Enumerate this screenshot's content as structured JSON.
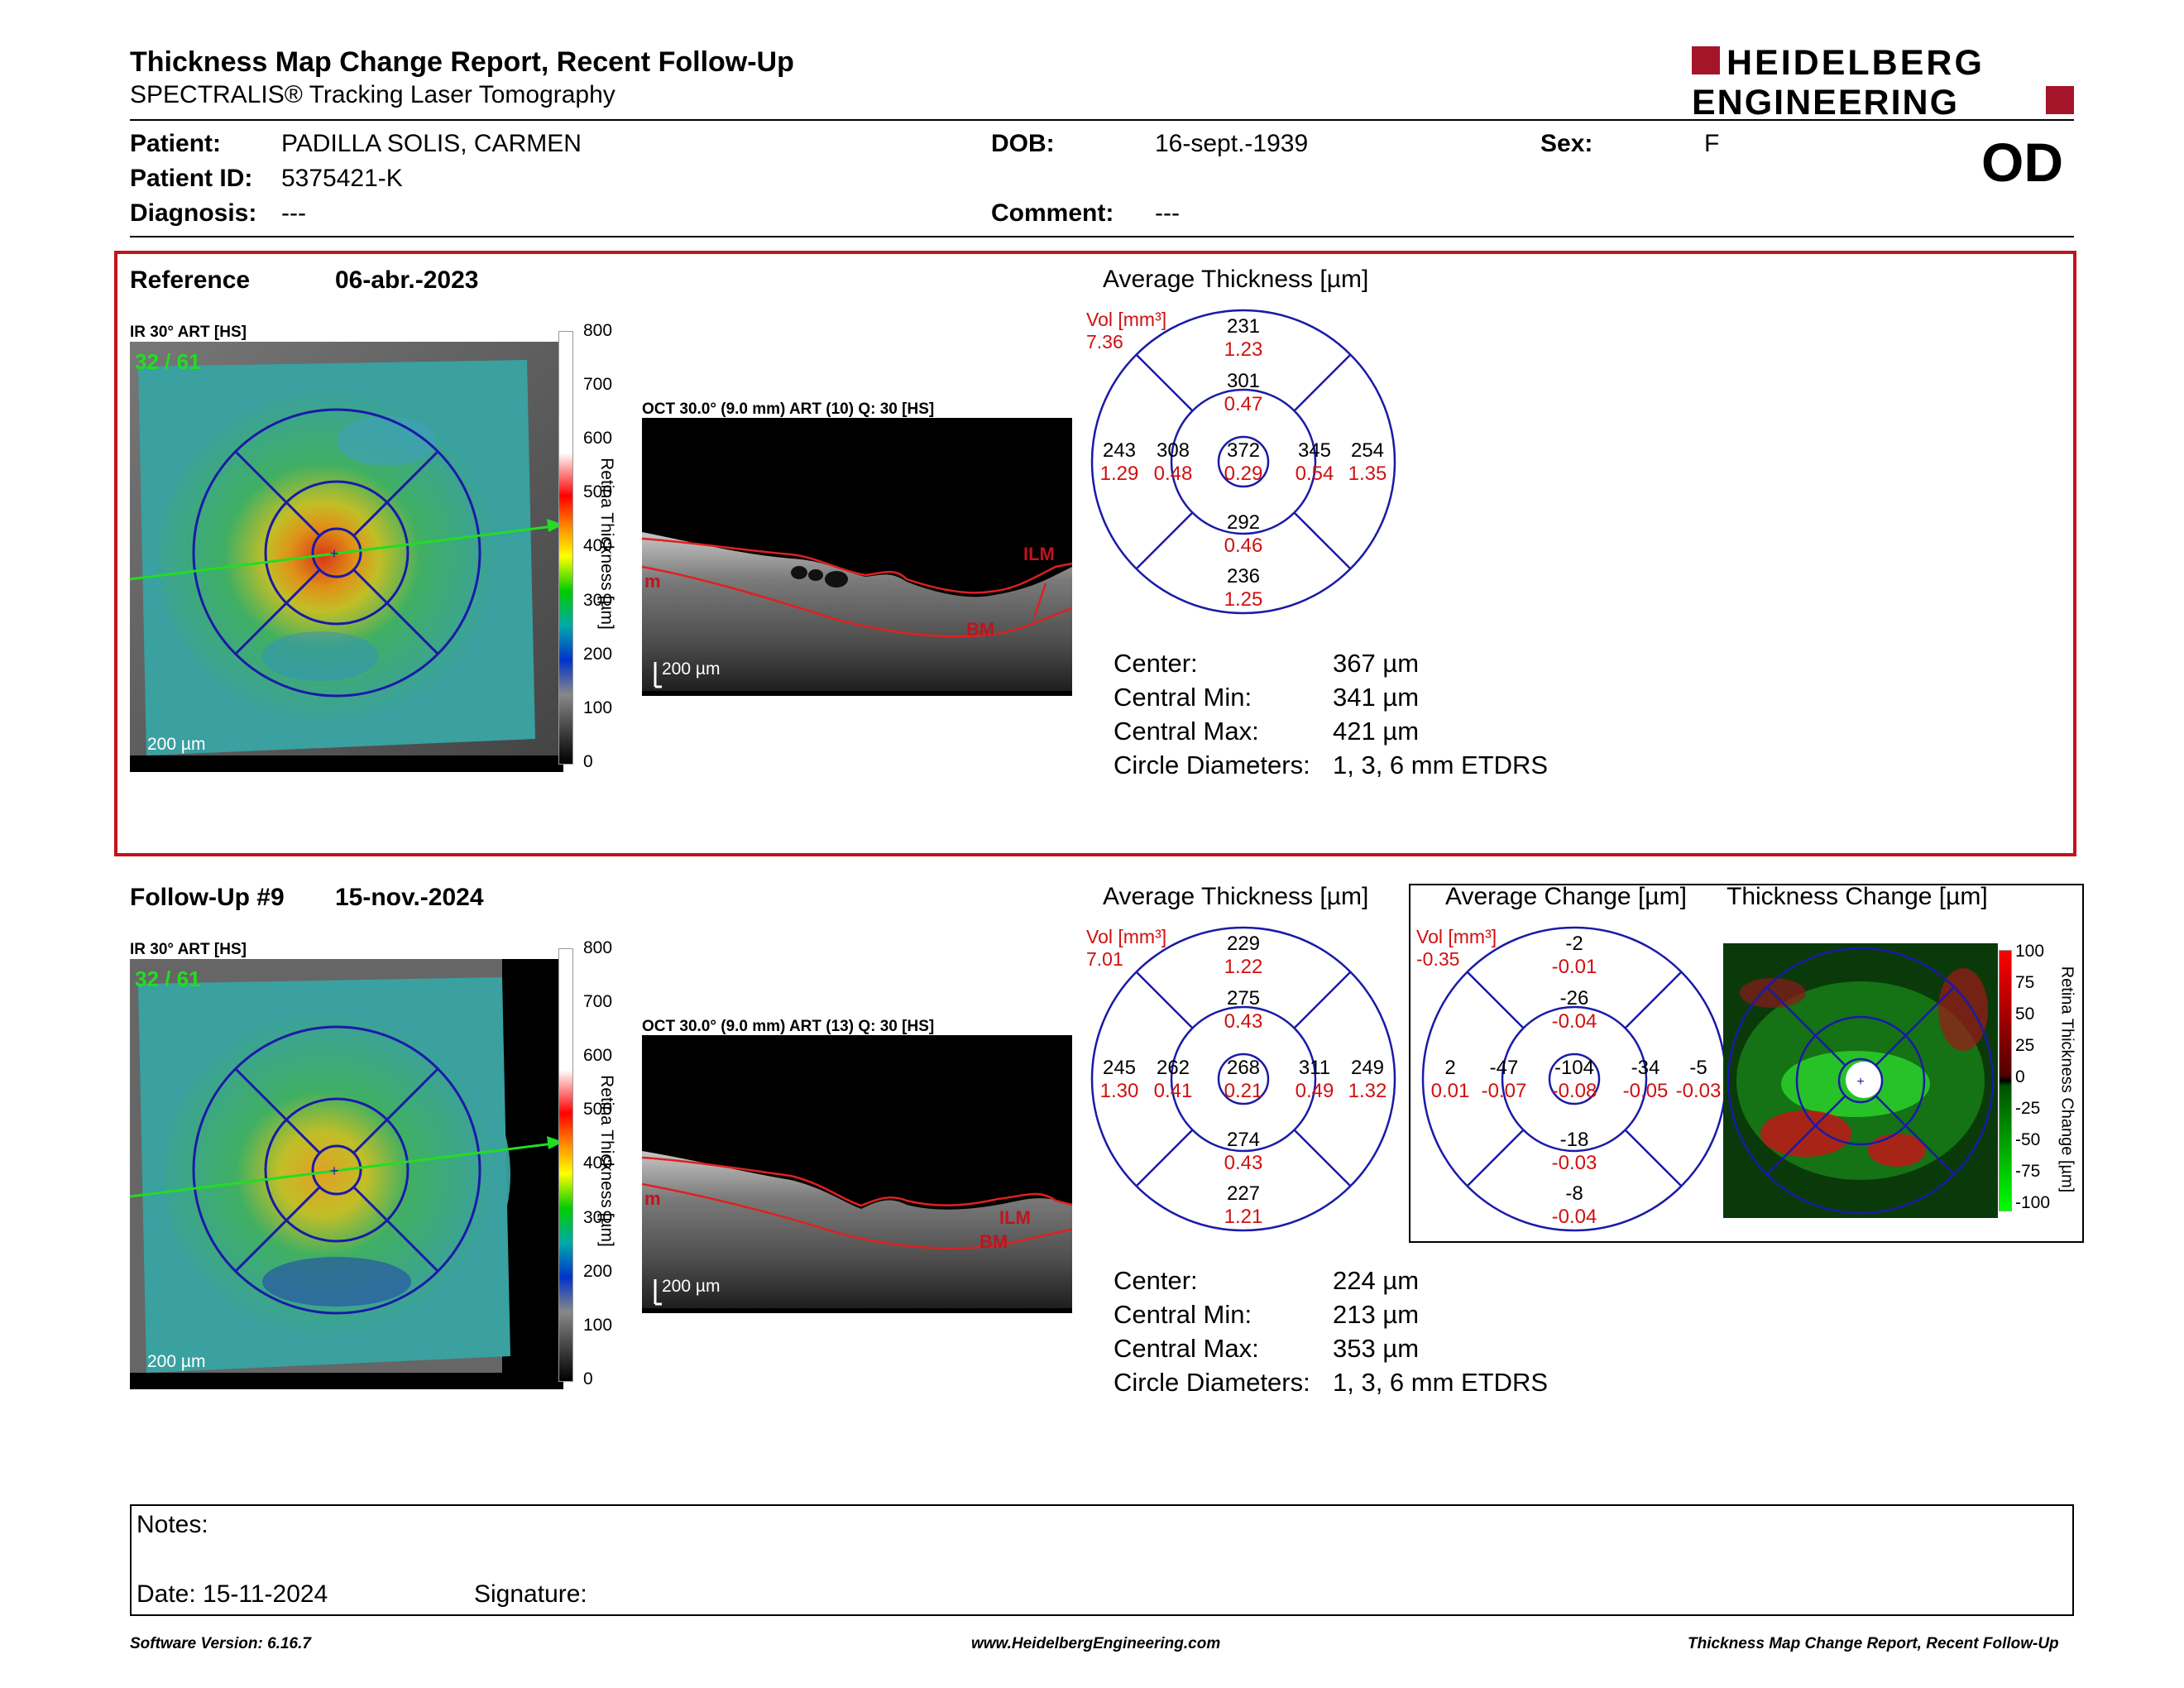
{
  "header": {
    "title": "Thickness Map Change Report, Recent Follow-Up",
    "subtitle": "SPECTRALIS® Tracking Laser Tomography",
    "logo_line1": "HEIDELBERG",
    "logo_line2": "ENGINEERING",
    "eye": "OD"
  },
  "patient": {
    "patient_label": "Patient:",
    "patient_value": "PADILLA SOLIS, CARMEN",
    "id_label": "Patient ID:",
    "id_value": "5375421-K",
    "diagnosis_label": "Diagnosis:",
    "diagnosis_value": "---",
    "dob_label": "DOB:",
    "dob_value": "16-sept.-1939",
    "comment_label": "Comment:",
    "comment_value": "---",
    "sex_label": "Sex:",
    "sex_value": "F"
  },
  "reference": {
    "label": "Reference",
    "date": "06-abr.-2023",
    "ir_label": "IR 30° ART [HS]",
    "fraction": "32 / 61",
    "scale": "200 µm",
    "oct_label": "OCT 30.0° (9.0 mm) ART (10) Q: 30 [HS]",
    "oct_scale": "200 µm",
    "ilm": "ILM",
    "bm": "BM",
    "m": "m",
    "colorbar_ticks": [
      "800",
      "700",
      "600",
      "500",
      "400",
      "300",
      "200",
      "100",
      "0"
    ],
    "colorbar_title": "Retina Thickness [µm]",
    "grid_title": "Average Thickness [µm]",
    "vol_label": "Vol [mm³]",
    "vol_value": "7.36",
    "grid": {
      "sup_outer": [
        "231",
        "1.23"
      ],
      "sup_inner": [
        "301",
        "0.47"
      ],
      "temp_outer": [
        "243",
        "1.29"
      ],
      "temp_inner": [
        "308",
        "0.48"
      ],
      "center": [
        "372",
        "0.29"
      ],
      "nas_inner": [
        "345",
        "0.54"
      ],
      "nas_outer": [
        "254",
        "1.35"
      ],
      "inf_inner": [
        "292",
        "0.46"
      ],
      "inf_outer": [
        "236",
        "1.25"
      ]
    },
    "stats": [
      {
        "label": "Center:",
        "value": "367 µm"
      },
      {
        "label": "Central Min:",
        "value": "341 µm"
      },
      {
        "label": "Central Max:",
        "value": "421 µm"
      },
      {
        "label": "Circle Diameters:",
        "value": "1, 3, 6 mm ETDRS"
      }
    ]
  },
  "followup": {
    "label": "Follow-Up #9",
    "date": "15-nov.-2024",
    "ir_label": "IR 30° ART [HS]",
    "fraction": "32 / 61",
    "scale": "200 µm",
    "oct_label": "OCT 30.0° (9.0 mm) ART (13) Q: 30 [HS]",
    "oct_scale": "200 µm",
    "ilm": "ILM",
    "bm": "BM",
    "m": "m",
    "colorbar_ticks": [
      "800",
      "700",
      "600",
      "500",
      "400",
      "300",
      "200",
      "100",
      "0"
    ],
    "colorbar_title": "Retina Thickness [µm]",
    "grid_title": "Average Thickness [µm]",
    "vol_label": "Vol [mm³]",
    "vol_value": "7.01",
    "grid": {
      "sup_outer": [
        "229",
        "1.22"
      ],
      "sup_inner": [
        "275",
        "0.43"
      ],
      "temp_outer": [
        "245",
        "1.30"
      ],
      "temp_inner": [
        "262",
        "0.41"
      ],
      "center": [
        "268",
        "0.21"
      ],
      "nas_inner": [
        "311",
        "0.49"
      ],
      "nas_outer": [
        "249",
        "1.32"
      ],
      "inf_inner": [
        "274",
        "0.43"
      ],
      "inf_outer": [
        "227",
        "1.21"
      ]
    },
    "stats": [
      {
        "label": "Center:",
        "value": "224 µm"
      },
      {
        "label": "Central Min:",
        "value": "213 µm"
      },
      {
        "label": "Central Max:",
        "value": "353 µm"
      },
      {
        "label": "Circle Diameters:",
        "value": "1, 3, 6 mm ETDRS"
      }
    ],
    "change_title": "Average Change [µm]",
    "change_vol_label": "Vol [mm³]",
    "change_vol_value": "-0.35",
    "change_grid": {
      "sup_outer": [
        "-2",
        "-0.01"
      ],
      "sup_inner": [
        "-26",
        "-0.04"
      ],
      "temp_outer": [
        "2",
        "0.01"
      ],
      "temp_inner": [
        "-47",
        "-0.07"
      ],
      "center": [
        "-104",
        "-0.08"
      ],
      "nas_inner": [
        "-34",
        "-0.05"
      ],
      "nas_outer": [
        "-5",
        "-0.03"
      ],
      "inf_inner": [
        "-18",
        "-0.03"
      ],
      "inf_outer": [
        "-8",
        "-0.04"
      ]
    },
    "thickness_change_title": "Thickness Change [µm]",
    "change_ticks": [
      "100",
      "75",
      "50",
      "25",
      "0",
      "-25",
      "-50",
      "-75",
      "-100"
    ],
    "change_colorbar_title": "Retina Thickness Change [µm]"
  },
  "notes": {
    "notes_label": "Notes:",
    "date_label": "Date: 15-11-2024",
    "signature_label": "Signature:"
  },
  "footer": {
    "left": "Software Version: 6.16.7",
    "center": "www.HeidelbergEngineering.com",
    "right": "Thickness Map Change Report, Recent Follow-Up"
  },
  "colors": {
    "accent_red": "#c0141c",
    "grid_blue": "#1a1aa8",
    "vol_red": "#d01010",
    "logo_red": "#a4152a"
  }
}
